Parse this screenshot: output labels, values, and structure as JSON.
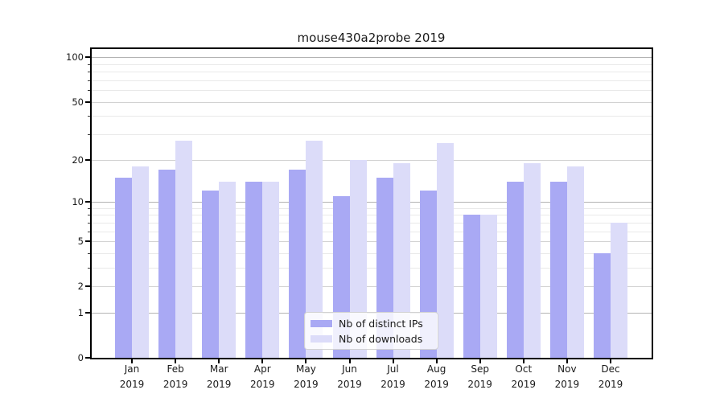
{
  "figure": {
    "title": "mouse430a2probe 2019"
  },
  "chart_data": {
    "type": "bar",
    "title": "mouse430a2probe 2019",
    "categories": [
      "Jan",
      "Feb",
      "Mar",
      "Apr",
      "May",
      "Jun",
      "Jul",
      "Aug",
      "Sep",
      "Oct",
      "Nov",
      "Dec"
    ],
    "category_year": "2019",
    "series": [
      {
        "name": "Nb of distinct IPs",
        "color": "#a9a9f4",
        "values": [
          15,
          17,
          12,
          14,
          17,
          11,
          15,
          12,
          8,
          14,
          14,
          4
        ]
      },
      {
        "name": "Nb of downloads",
        "color": "#dcdcf9",
        "values": [
          18,
          27,
          14,
          14,
          27,
          20,
          19,
          26,
          8,
          19,
          18,
          7
        ]
      }
    ],
    "y_axis": {
      "scale": "log1p",
      "major_ticks": [
        0,
        1,
        2,
        5,
        10,
        20,
        50,
        100
      ],
      "minor_ticks": [
        3,
        4,
        6,
        7,
        8,
        9,
        30,
        40,
        60,
        70,
        80,
        90
      ],
      "emphasized_ticks": [
        1,
        10,
        100
      ],
      "ylim": [
        0,
        116
      ]
    },
    "legend": {
      "position": "lower center"
    },
    "grid": "on",
    "colors": {
      "major_gridline": "#b3b3b3",
      "labeled_gridline": "#d2d2d2",
      "minor_gridline": "#e9e9e9",
      "axis": "#000000"
    }
  }
}
